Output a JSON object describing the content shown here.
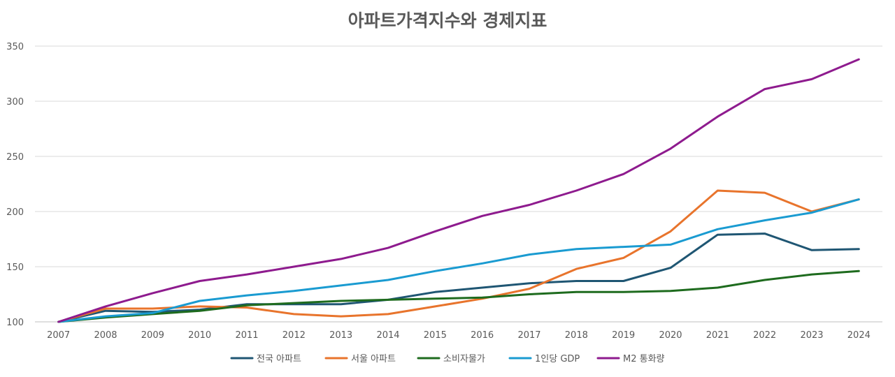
{
  "chart_data": {
    "type": "line",
    "title": "아파트가격지수와 경제지표",
    "xlabel": "",
    "ylabel": "",
    "x": [
      "2007",
      "2008",
      "2009",
      "2010",
      "2011",
      "2012",
      "2013",
      "2014",
      "2015",
      "2016",
      "2017",
      "2018",
      "2019",
      "2020",
      "2021",
      "2022",
      "2023",
      "2024"
    ],
    "ylim": [
      100,
      350
    ],
    "yticks": [
      100,
      150,
      200,
      250,
      300,
      350
    ],
    "grid": true,
    "legend_position": "bottom",
    "series": [
      {
        "name": "전국 아파트",
        "color": "#1f5673",
        "values": [
          100,
          110,
          109,
          111,
          116,
          116,
          116,
          120,
          127,
          131,
          135,
          137,
          137,
          149,
          179,
          180,
          165,
          166
        ]
      },
      {
        "name": "서울 아파트",
        "color": "#e8742c",
        "values": [
          100,
          112,
          112,
          114,
          113,
          107,
          105,
          107,
          114,
          121,
          130,
          148,
          158,
          182,
          219,
          217,
          200,
          211
        ]
      },
      {
        "name": "소비자물가",
        "color": "#1e6b1e",
        "values": [
          100,
          104,
          107,
          110,
          115,
          117,
          119,
          120,
          121,
          122,
          125,
          127,
          127,
          128,
          131,
          138,
          143,
          146
        ]
      },
      {
        "name": "1인당 GDP",
        "color": "#1a9bd1",
        "values": [
          100,
          105,
          108,
          119,
          124,
          128,
          133,
          138,
          146,
          153,
          161,
          166,
          168,
          170,
          184,
          192,
          199,
          211
        ]
      },
      {
        "name": "M2 통화량",
        "color": "#8e1b8e",
        "values": [
          100,
          114,
          126,
          137,
          143,
          150,
          157,
          167,
          182,
          196,
          206,
          219,
          234,
          257,
          286,
          311,
          320,
          338
        ]
      }
    ]
  }
}
